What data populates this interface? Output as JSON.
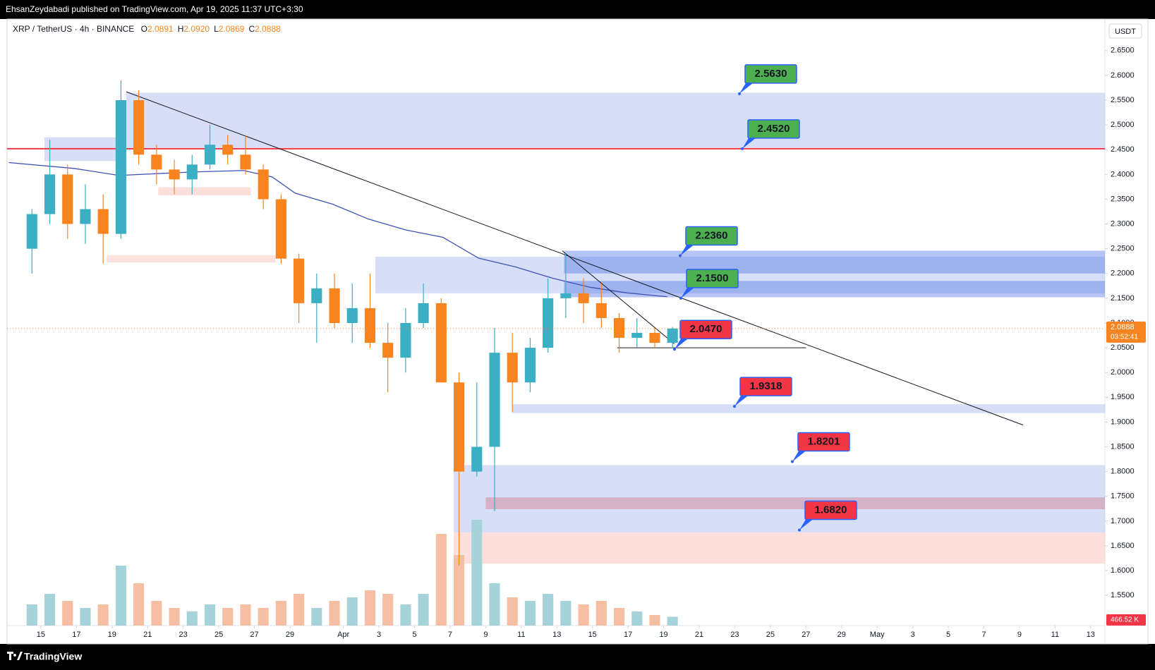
{
  "header": {
    "text": "EhsanZeydabadi published on TradingView.com, Apr 19, 2025 11:37 UTC+3:30"
  },
  "footer": {
    "brand": "TradingView"
  },
  "chart_data": {
    "type": "candlestick",
    "symbol": "XRP / TetherUS · 4h · BINANCE",
    "ohlc_legend": [
      {
        "label": "O",
        "value": "2.0891"
      },
      {
        "label": "H",
        "value": "2.0920"
      },
      {
        "label": "L",
        "value": "2.0869"
      },
      {
        "label": "C",
        "value": "2.0888"
      }
    ],
    "currency": "USDT",
    "last_price": {
      "value": 2.0888,
      "label": "2.0888"
    },
    "countdown": "03:52:41",
    "last_volume": "466.52 K",
    "x": [
      -0.5,
      0.5,
      1.5,
      2.5,
      3.5,
      4.5,
      5.5,
      6.5,
      7.5,
      8.5,
      9.5,
      10.5,
      11.5,
      12.5,
      13.5,
      14.5,
      15.5,
      16.5,
      17.5,
      18.5,
      19.5,
      20.5,
      21.5,
      22.5,
      23.5,
      24.5,
      25.5,
      26.5,
      27.5,
      28.5,
      29.5,
      30.5,
      31.5,
      32.5,
      33.5,
      34.5,
      35.5
    ],
    "open": [
      2.25,
      2.32,
      2.4,
      2.3,
      2.33,
      2.28,
      2.55,
      2.44,
      2.41,
      2.39,
      2.42,
      2.46,
      2.44,
      2.41,
      2.35,
      2.23,
      2.14,
      2.17,
      2.1,
      2.13,
      2.06,
      2.03,
      2.1,
      2.14,
      1.98,
      1.8,
      1.85,
      2.04,
      1.98,
      2.05,
      2.15,
      2.16,
      2.14,
      2.11,
      2.07,
      2.08,
      2.06
    ],
    "high": [
      2.33,
      2.47,
      2.42,
      2.38,
      2.36,
      2.59,
      2.57,
      2.46,
      2.43,
      2.44,
      2.5,
      2.48,
      2.48,
      2.42,
      2.36,
      2.24,
      2.2,
      2.2,
      2.18,
      2.2,
      2.1,
      2.13,
      2.18,
      2.15,
      2.0,
      1.98,
      2.09,
      2.08,
      2.07,
      2.19,
      2.24,
      2.19,
      2.18,
      2.12,
      2.11,
      2.09,
      2.092
    ],
    "low": [
      2.2,
      2.3,
      2.27,
      2.26,
      2.22,
      2.27,
      2.42,
      2.38,
      2.36,
      2.36,
      2.41,
      2.42,
      2.4,
      2.33,
      2.22,
      2.1,
      2.06,
      2.09,
      2.06,
      2.05,
      1.96,
      2.0,
      2.09,
      1.98,
      1.61,
      1.79,
      1.72,
      1.92,
      1.96,
      2.04,
      2.11,
      2.1,
      2.09,
      2.04,
      2.05,
      2.05,
      2.05
    ],
    "close": [
      2.32,
      2.4,
      2.3,
      2.33,
      2.28,
      2.55,
      2.44,
      2.41,
      2.39,
      2.42,
      2.46,
      2.44,
      2.41,
      2.35,
      2.23,
      2.14,
      2.17,
      2.1,
      2.13,
      2.06,
      2.03,
      2.1,
      2.14,
      1.98,
      1.8,
      1.85,
      2.04,
      1.98,
      2.05,
      2.15,
      2.16,
      2.14,
      2.11,
      2.07,
      2.08,
      2.06,
      2.0888
    ],
    "volume": [
      6000,
      9000,
      7000,
      5000,
      6000,
      17000,
      12000,
      7000,
      5000,
      4000,
      6000,
      5000,
      6000,
      5000,
      7000,
      9000,
      5000,
      7000,
      8000,
      10000,
      9000,
      6000,
      9000,
      26000,
      20000,
      30000,
      12000,
      8000,
      7000,
      9000,
      7000,
      6000,
      7000,
      5000,
      4000,
      3000,
      2500
    ],
    "colors": {
      "up": "#3bafc4",
      "down": "#f7841f",
      "volume_up": "#a6d3da",
      "volume_down": "#f6bea2"
    },
    "xlim": [
      -1.9,
      59.8
    ],
    "xticks": [
      {
        "value": 0,
        "label": "15"
      },
      {
        "value": 2,
        "label": "17"
      },
      {
        "value": 4,
        "label": "19"
      },
      {
        "value": 6,
        "label": "21"
      },
      {
        "value": 8,
        "label": "23"
      },
      {
        "value": 10,
        "label": "25"
      },
      {
        "value": 12,
        "label": "27"
      },
      {
        "value": 14,
        "label": "29"
      },
      {
        "value": 17,
        "label": "Apr"
      },
      {
        "value": 19,
        "label": "3"
      },
      {
        "value": 21,
        "label": "5"
      },
      {
        "value": 23,
        "label": "7"
      },
      {
        "value": 25,
        "label": "9"
      },
      {
        "value": 27,
        "label": "11"
      },
      {
        "value": 29,
        "label": "13"
      },
      {
        "value": 31,
        "label": "15"
      },
      {
        "value": 33,
        "label": "17"
      },
      {
        "value": 35,
        "label": "19"
      },
      {
        "value": 37,
        "label": "21"
      },
      {
        "value": 39,
        "label": "23"
      },
      {
        "value": 41,
        "label": "25"
      },
      {
        "value": 43,
        "label": "27"
      },
      {
        "value": 45,
        "label": "29"
      },
      {
        "value": 47,
        "label": "May"
      },
      {
        "value": 49,
        "label": "3"
      },
      {
        "value": 51,
        "label": "5"
      },
      {
        "value": 53,
        "label": "7"
      },
      {
        "value": 55,
        "label": "9"
      },
      {
        "value": 57,
        "label": "11"
      },
      {
        "value": 59,
        "label": "13"
      }
    ],
    "ylim": [
      1.489,
      2.711
    ],
    "yticks": [
      {
        "value": 1.55,
        "label": "1.5500"
      },
      {
        "value": 1.6,
        "label": "1.6000"
      },
      {
        "value": 1.65,
        "label": "1.6500"
      },
      {
        "value": 1.7,
        "label": "1.7000"
      },
      {
        "value": 1.75,
        "label": "1.7500"
      },
      {
        "value": 1.8,
        "label": "1.8000"
      },
      {
        "value": 1.85,
        "label": "1.8500"
      },
      {
        "value": 1.9,
        "label": "1.9000"
      },
      {
        "value": 1.95,
        "label": "1.9500"
      },
      {
        "value": 2.0,
        "label": "2.0000"
      },
      {
        "value": 2.05,
        "label": "2.0500"
      },
      {
        "value": 2.1,
        "label": "2.1000"
      },
      {
        "value": 2.15,
        "label": "2.1500"
      },
      {
        "value": 2.2,
        "label": "2.2000"
      },
      {
        "value": 2.25,
        "label": "2.2500"
      },
      {
        "value": 2.3,
        "label": "2.3000"
      },
      {
        "value": 2.35,
        "label": "2.3500"
      },
      {
        "value": 2.4,
        "label": "2.4000"
      },
      {
        "value": 2.45,
        "label": "2.4500"
      },
      {
        "value": 2.5,
        "label": "2.5000"
      },
      {
        "value": 2.55,
        "label": "2.5500"
      },
      {
        "value": 2.6,
        "label": "2.6000"
      },
      {
        "value": 2.65,
        "label": "2.6500"
      }
    ],
    "vlim": [
      0,
      40000
    ],
    "moving_average": {
      "color": "#3f51b5",
      "x": [
        -1.8,
        1.9,
        4.4,
        8.5,
        11.4,
        13.0,
        14.3,
        16.4,
        18.4,
        20.5,
        22.6,
        24.6,
        26.7,
        28.8,
        30.9,
        32.9,
        35.2
      ],
      "values": [
        2.424,
        2.412,
        2.398,
        2.405,
        2.408,
        2.395,
        2.362,
        2.34,
        2.31,
        2.288,
        2.273,
        2.231,
        2.213,
        2.19,
        2.172,
        2.161,
        2.153
      ]
    },
    "zones": [
      {
        "x": [
          4.8,
          59.8
        ],
        "range": [
          2.454,
          2.565
        ],
        "color": "rgba(120,150,230,0.30)"
      },
      {
        "x": [
          0.2,
          4.5
        ],
        "range": [
          2.427,
          2.475
        ],
        "color": "rgba(120,150,230,0.30)"
      },
      {
        "x": [
          6.6,
          11.8
        ],
        "range": [
          2.358,
          2.374
        ],
        "color": "rgba(245,160,150,0.35)"
      },
      {
        "x": [
          3.7,
          13.2
        ],
        "range": [
          2.222,
          2.237
        ],
        "color": "rgba(245,160,150,0.30)"
      },
      {
        "x": [
          18.8,
          59.8
        ],
        "range": [
          2.16,
          2.234
        ],
        "color": "rgba(120,150,230,0.30)"
      },
      {
        "x": [
          29.4,
          59.8
        ],
        "range": [
          2.2,
          2.246
        ],
        "color": "rgba(90,125,230,0.45)"
      },
      {
        "x": [
          29.4,
          59.8
        ],
        "range": [
          2.152,
          2.185
        ],
        "color": "rgba(90,125,230,0.45)"
      },
      {
        "x": [
          26.5,
          59.8
        ],
        "range": [
          1.918,
          1.936
        ],
        "color": "rgba(120,150,230,0.30)"
      },
      {
        "x": [
          23.2,
          59.8
        ],
        "range": [
          1.677,
          1.813
        ],
        "color": "rgba(120,150,230,0.30)"
      },
      {
        "x": [
          25.0,
          59.8
        ],
        "range": [
          1.724,
          1.748
        ],
        "color": "rgba(215,110,125,0.40)"
      },
      {
        "x": [
          23.2,
          59.8
        ],
        "range": [
          1.614,
          1.677
        ],
        "color": "rgba(250,170,160,0.38)"
      }
    ],
    "levels": [
      {
        "value": 2.452,
        "color": "#f23645"
      }
    ],
    "trendlines": [
      {
        "x": [
          4.8,
          55.2
        ],
        "y": [
          2.567,
          1.894
        ],
        "color": "#131722"
      },
      {
        "x": [
          29.3,
          35.6
        ],
        "y": [
          2.246,
          2.058
        ],
        "color": "#131722"
      },
      {
        "x": [
          32.4,
          43.0
        ],
        "y": [
          2.05,
          2.05
        ],
        "color": "#131722"
      }
    ],
    "callouts": [
      {
        "value": 2.563,
        "label": "2.5630",
        "color": "#4caf50"
      },
      {
        "value": 2.452,
        "label": "2.4520",
        "color": "#4caf50"
      },
      {
        "value": 2.236,
        "label": "2.2360",
        "color": "#4caf50"
      },
      {
        "value": 2.15,
        "label": "2.1500",
        "color": "#4caf50"
      },
      {
        "value": 2.047,
        "label": "2.0470",
        "color": "#f23645"
      },
      {
        "value": 1.9318,
        "label": "1.9318",
        "color": "#f23645"
      },
      {
        "value": 1.8201,
        "label": "1.8201",
        "color": "#f23645"
      },
      {
        "value": 1.682,
        "label": "1.6820",
        "color": "#f23645"
      }
    ]
  }
}
